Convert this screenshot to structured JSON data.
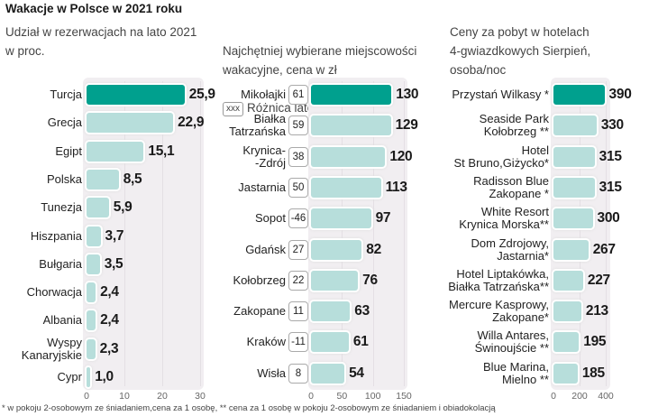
{
  "title": "Wakacje w Polsce w 2021 roku",
  "footnote": "* w pokoju 2-osobowym ze śniadaniem,cena za 1 osobę, ** cena za 1 osobę w pokoju 2-osobowym ze śniadaniem i obiadokolacją",
  "colors": {
    "highlight": "#00a08e",
    "bar": "#b7dedb",
    "panel": "#f1eef1"
  },
  "chart_data": [
    {
      "type": "bar",
      "orientation": "horizontal",
      "title": "Udział w rezerwacjach na lato 2021\nw proc.",
      "categories": [
        "Turcja",
        "Grecja",
        "Egipt",
        "Polska",
        "Tunezja",
        "Hiszpania",
        "Bułgaria",
        "Chorwacja",
        "Albania",
        "Wyspy\nKanaryjskie",
        "Cypr"
      ],
      "values": [
        25.9,
        22.9,
        15.1,
        8.5,
        5.9,
        3.7,
        3.5,
        2.4,
        2.4,
        2.3,
        1.0
      ],
      "value_labels": [
        "25,9",
        "22,9",
        "15,1",
        "8,5",
        "5,9",
        "3,7",
        "3,5",
        "2,4",
        "2,4",
        "2,3",
        "1,0"
      ],
      "xlim": [
        0,
        30
      ],
      "ticks": [
        "0",
        "10",
        "20",
        "30"
      ],
      "tick_values": [
        0,
        10,
        20,
        30
      ]
    },
    {
      "type": "bar",
      "orientation": "horizontal",
      "title": " Najchętniej wybierane miejscowości\nwakacyjne, cena w zł",
      "legend_box": "xxx",
      "legend_text": "Różnica lato 2020/21 w proc.",
      "categories": [
        "Mikołajki",
        "Białka\nTatrzańska",
        "Krynica-\n-Zdrój",
        "Jastarnia",
        "Sopot",
        "Gdańsk",
        "Kołobrzeg",
        "Zakopane",
        "Kraków",
        "Wisła"
      ],
      "values": [
        130,
        129,
        120,
        113,
        97,
        82,
        76,
        63,
        61,
        54
      ],
      "value_labels": [
        "130",
        "129",
        "120",
        "113",
        "97",
        "82",
        "76",
        "63",
        "61",
        "54"
      ],
      "change_pct": [
        "61",
        "59",
        "38",
        "50",
        "-46",
        "27",
        "22",
        "11",
        "-11",
        "8"
      ],
      "xlim": [
        0,
        150
      ],
      "ticks": [
        "0",
        "50",
        "100",
        "150"
      ],
      "tick_values": [
        0,
        50,
        100,
        150
      ]
    },
    {
      "type": "bar",
      "orientation": "horizontal",
      "title": "Ceny za pobyt w hotelach\n4-gwiazdkowych  Sierpień,\nosoba/noc",
      "categories": [
        "Przystań Wilkasy *",
        "Seaside Park\nKołobrzeg **",
        "Hotel\nSt Bruno,Giżycko*",
        "Radisson Blue\nZakopane *",
        "White Resort\nKrynica Morska**",
        "Dom Zdrojowy,\nJastarnia*",
        "Hotel Liptakówka,\nBiałka Tatrzańska**",
        "Mercure Kasprowy,\nZakopane*",
        "Willa Antares,\nŚwinoujście **",
        "Blue Marina,\nMielno **"
      ],
      "values": [
        390,
        330,
        315,
        315,
        300,
        267,
        227,
        213,
        195,
        185
      ],
      "value_labels": [
        "390",
        "330",
        "315",
        "315",
        "300",
        "267",
        "227",
        "213",
        "195",
        "185"
      ],
      "xlim": [
        0,
        400
      ],
      "ticks": [
        "0",
        "200",
        "400"
      ],
      "tick_values": [
        0,
        200,
        400
      ]
    }
  ]
}
